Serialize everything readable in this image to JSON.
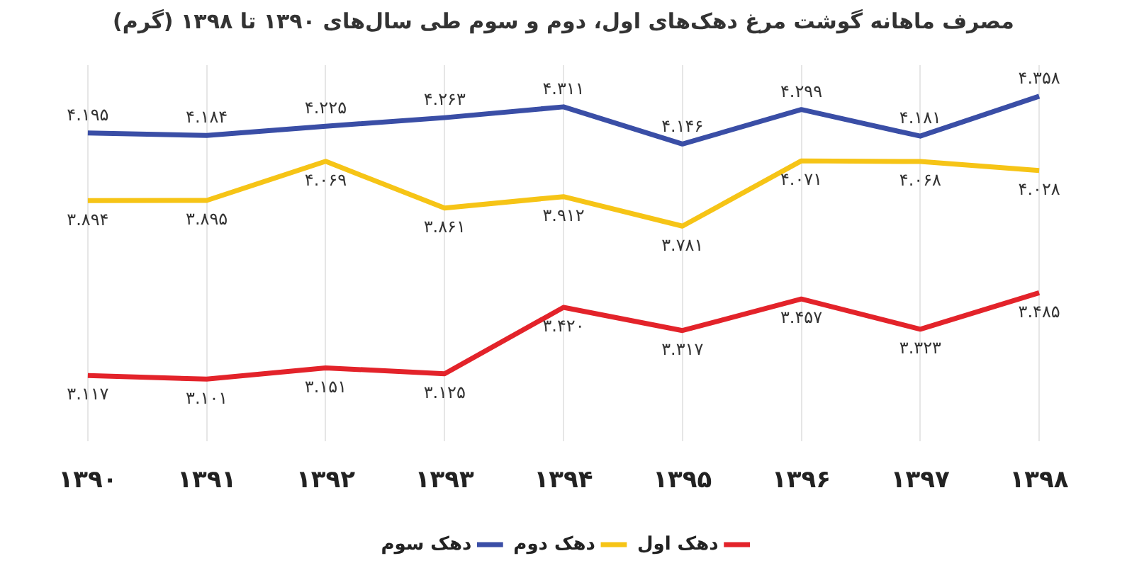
{
  "chart_data": {
    "type": "line",
    "title": "مصرف ماهانه گوشت مرغ دهک‌های اول، دوم و سوم طی سال‌های ۱۳۹۰ تا ۱۳۹۸ (گرم)",
    "categories": [
      "۱۳۹۰",
      "۱۳۹۱",
      "۱۳۹۲",
      "۱۳۹۳",
      "۱۳۹۴",
      "۱۳۹۵",
      "۱۳۹۶",
      "۱۳۹۷",
      "۱۳۹۸"
    ],
    "series": [
      {
        "name": "دهک اول",
        "color": "#e3232a",
        "values": [
          3.117,
          3.101,
          3.151,
          3.125,
          3.42,
          3.317,
          3.457,
          3.323,
          3.485
        ],
        "value_labels": [
          "۳.۱۱۷",
          "۳.۱۰۱",
          "۳.۱۵۱",
          "۳.۱۲۵",
          "۳.۴۲۰",
          "۳.۳۱۷",
          "۳.۴۵۷",
          "۳.۳۲۳",
          "۳.۴۸۵"
        ]
      },
      {
        "name": "دهک دوم",
        "color": "#f6c416",
        "values": [
          3.894,
          3.895,
          4.069,
          3.861,
          3.912,
          3.781,
          4.071,
          4.068,
          4.028
        ],
        "value_labels": [
          "۳.۸۹۴",
          "۳.۸۹۵",
          "۴.۰۶۹",
          "۳.۸۶۱",
          "۳.۹۱۲",
          "۳.۷۸۱",
          "۴.۰۷۱",
          "۴.۰۶۸",
          "۴.۰۲۸"
        ]
      },
      {
        "name": "دهک سوم",
        "color": "#3a4ea6",
        "values": [
          4.195,
          4.184,
          4.225,
          4.263,
          4.311,
          4.146,
          4.299,
          4.181,
          4.358
        ],
        "value_labels": [
          "۴.۱۹۵",
          "۴.۱۸۴",
          "۴.۲۲۵",
          "۴.۲۶۳",
          "۴.۳۱۱",
          "۴.۱۴۶",
          "۴.۲۹۹",
          "۴.۱۸۱",
          "۴.۳۵۸"
        ]
      }
    ],
    "grid": "x",
    "legend": "bottom",
    "marker": "none",
    "line_style": "solid"
  }
}
